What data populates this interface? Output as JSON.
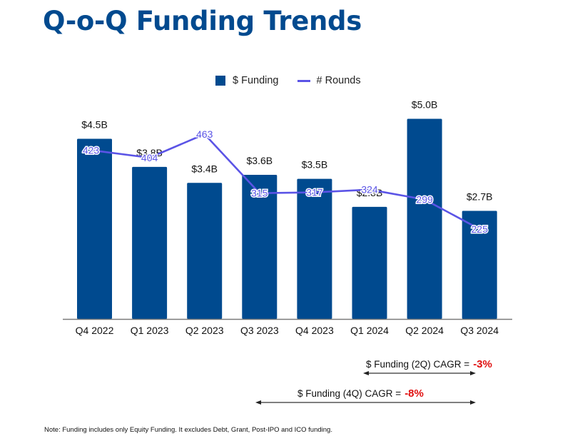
{
  "page": {
    "title": "Q-o-Q Funding Trends",
    "note": "Note: Funding includes only Equity Funding. It excludes Debt, Grant, Post-IPO and ICO funding."
  },
  "colors": {
    "funding_bar": "#004a8f",
    "rounds_line": "#5b54e6",
    "title": "#004a8f",
    "cagr_value": "#e01010"
  },
  "chart_data": {
    "type": "bar",
    "title": "Q-o-Q Funding Trends",
    "xlabel": "",
    "ylabel": "",
    "categories": [
      "Q4 2022",
      "Q1 2023",
      "Q2 2023",
      "Q3 2023",
      "Q4 2023",
      "Q1 2024",
      "Q2 2024",
      "Q3 2024"
    ],
    "series": [
      {
        "name": "$ Funding",
        "type": "bar",
        "unit": "$B",
        "values": [
          4.5,
          3.8,
          3.4,
          3.6,
          3.5,
          2.8,
          5.0,
          2.7
        ],
        "labels": [
          "$4.5B",
          "$3.8B",
          "$3.4B",
          "$3.6B",
          "$3.5B",
          "$2.8B",
          "$5.0B",
          "$2.7B"
        ]
      },
      {
        "name": "# Rounds",
        "type": "line",
        "values": [
          423,
          404,
          463,
          315,
          317,
          324,
          299,
          225
        ],
        "labels": [
          "423",
          "404",
          "463",
          "315",
          "317",
          "324",
          "299",
          "225"
        ]
      }
    ],
    "legend": {
      "position": "top-center",
      "entries": [
        "$ Funding",
        "# Rounds"
      ]
    },
    "grid": false,
    "annotations": [
      {
        "text": "$ Funding (2Q) CAGR =",
        "value": "-3%",
        "span": [
          "Q1 2024",
          "Q3 2024"
        ]
      },
      {
        "text": "$ Funding (4Q) CAGR =",
        "value": "-8%",
        "span": [
          "Q3 2023",
          "Q3 2024"
        ]
      }
    ]
  }
}
